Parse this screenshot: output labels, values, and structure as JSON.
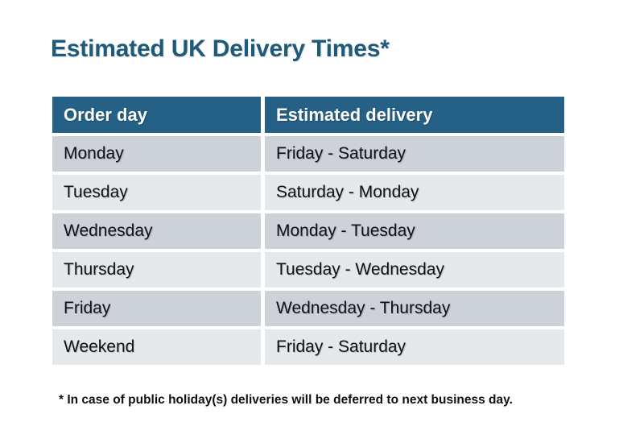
{
  "title": "Estimated UK Delivery Times*",
  "table": {
    "headers": [
      "Order day",
      "Estimated delivery"
    ],
    "rows": [
      {
        "order_day": "Monday",
        "estimated_delivery": "Friday - Saturday"
      },
      {
        "order_day": "Tuesday",
        "estimated_delivery": "Saturday - Monday"
      },
      {
        "order_day": "Wednesday",
        "estimated_delivery": "Monday - Tuesday"
      },
      {
        "order_day": "Thursday",
        "estimated_delivery": "Tuesday - Wednesday"
      },
      {
        "order_day": "Friday",
        "estimated_delivery": "Wednesday - Thursday"
      },
      {
        "order_day": "Weekend",
        "estimated_delivery": "Friday - Saturday"
      }
    ]
  },
  "footnote": "* In case of public holiday(s) deliveries will be deferred to next business day.",
  "colors": {
    "title_text": "#1E5A79",
    "header_background": "#256186",
    "header_text": "#FFFFFF",
    "row_odd_background": "#CDD1D8",
    "row_even_background": "#E6E9EC",
    "body_text": "#121212",
    "page_background": "#FFFFFF"
  }
}
